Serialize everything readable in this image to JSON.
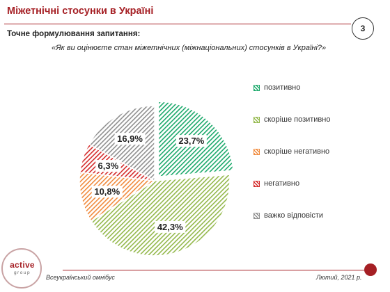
{
  "header": {
    "title": "Міжетнічні стосунки в Україні",
    "page_number": "3"
  },
  "question": {
    "label": "Точне формулювання запитання:",
    "text": "«Як ви оцінюєте стан міжетнічних (міжнаціональних) стосунків в Україні?»"
  },
  "footer": {
    "logo_top": "active",
    "logo_bottom": "group",
    "left_text": "Всеукраїнський омнібус",
    "right_text": "Лютий, 2021 р."
  },
  "colors": {
    "brand": "#a51f24",
    "positive": "#1aa86a",
    "rather_positive": "#93b84b",
    "rather_negative": "#f08a3c",
    "negative": "#d42a2a",
    "hard_to_say": "#8f8f8f"
  },
  "chart_data": {
    "type": "pie",
    "title": "",
    "slices": [
      {
        "name": "позитивно",
        "value": 23.7,
        "label": "23,7%",
        "color": "#1aa86a",
        "exploded": true
      },
      {
        "name": "скоріше позитивно",
        "value": 42.3,
        "label": "42,3%",
        "color": "#93b84b",
        "exploded": false
      },
      {
        "name": "скоріше негативно",
        "value": 10.8,
        "label": "10,8%",
        "color": "#f08a3c",
        "exploded": false
      },
      {
        "name": "негативно",
        "value": 6.3,
        "label": "6,3%",
        "color": "#d42a2a",
        "exploded": false
      },
      {
        "name": "важко відповісти",
        "value": 16.9,
        "label": "16,9%",
        "color": "#8f8f8f",
        "exploded": false
      }
    ],
    "legend_position": "right",
    "fill_style": "diagonal-hatch"
  }
}
